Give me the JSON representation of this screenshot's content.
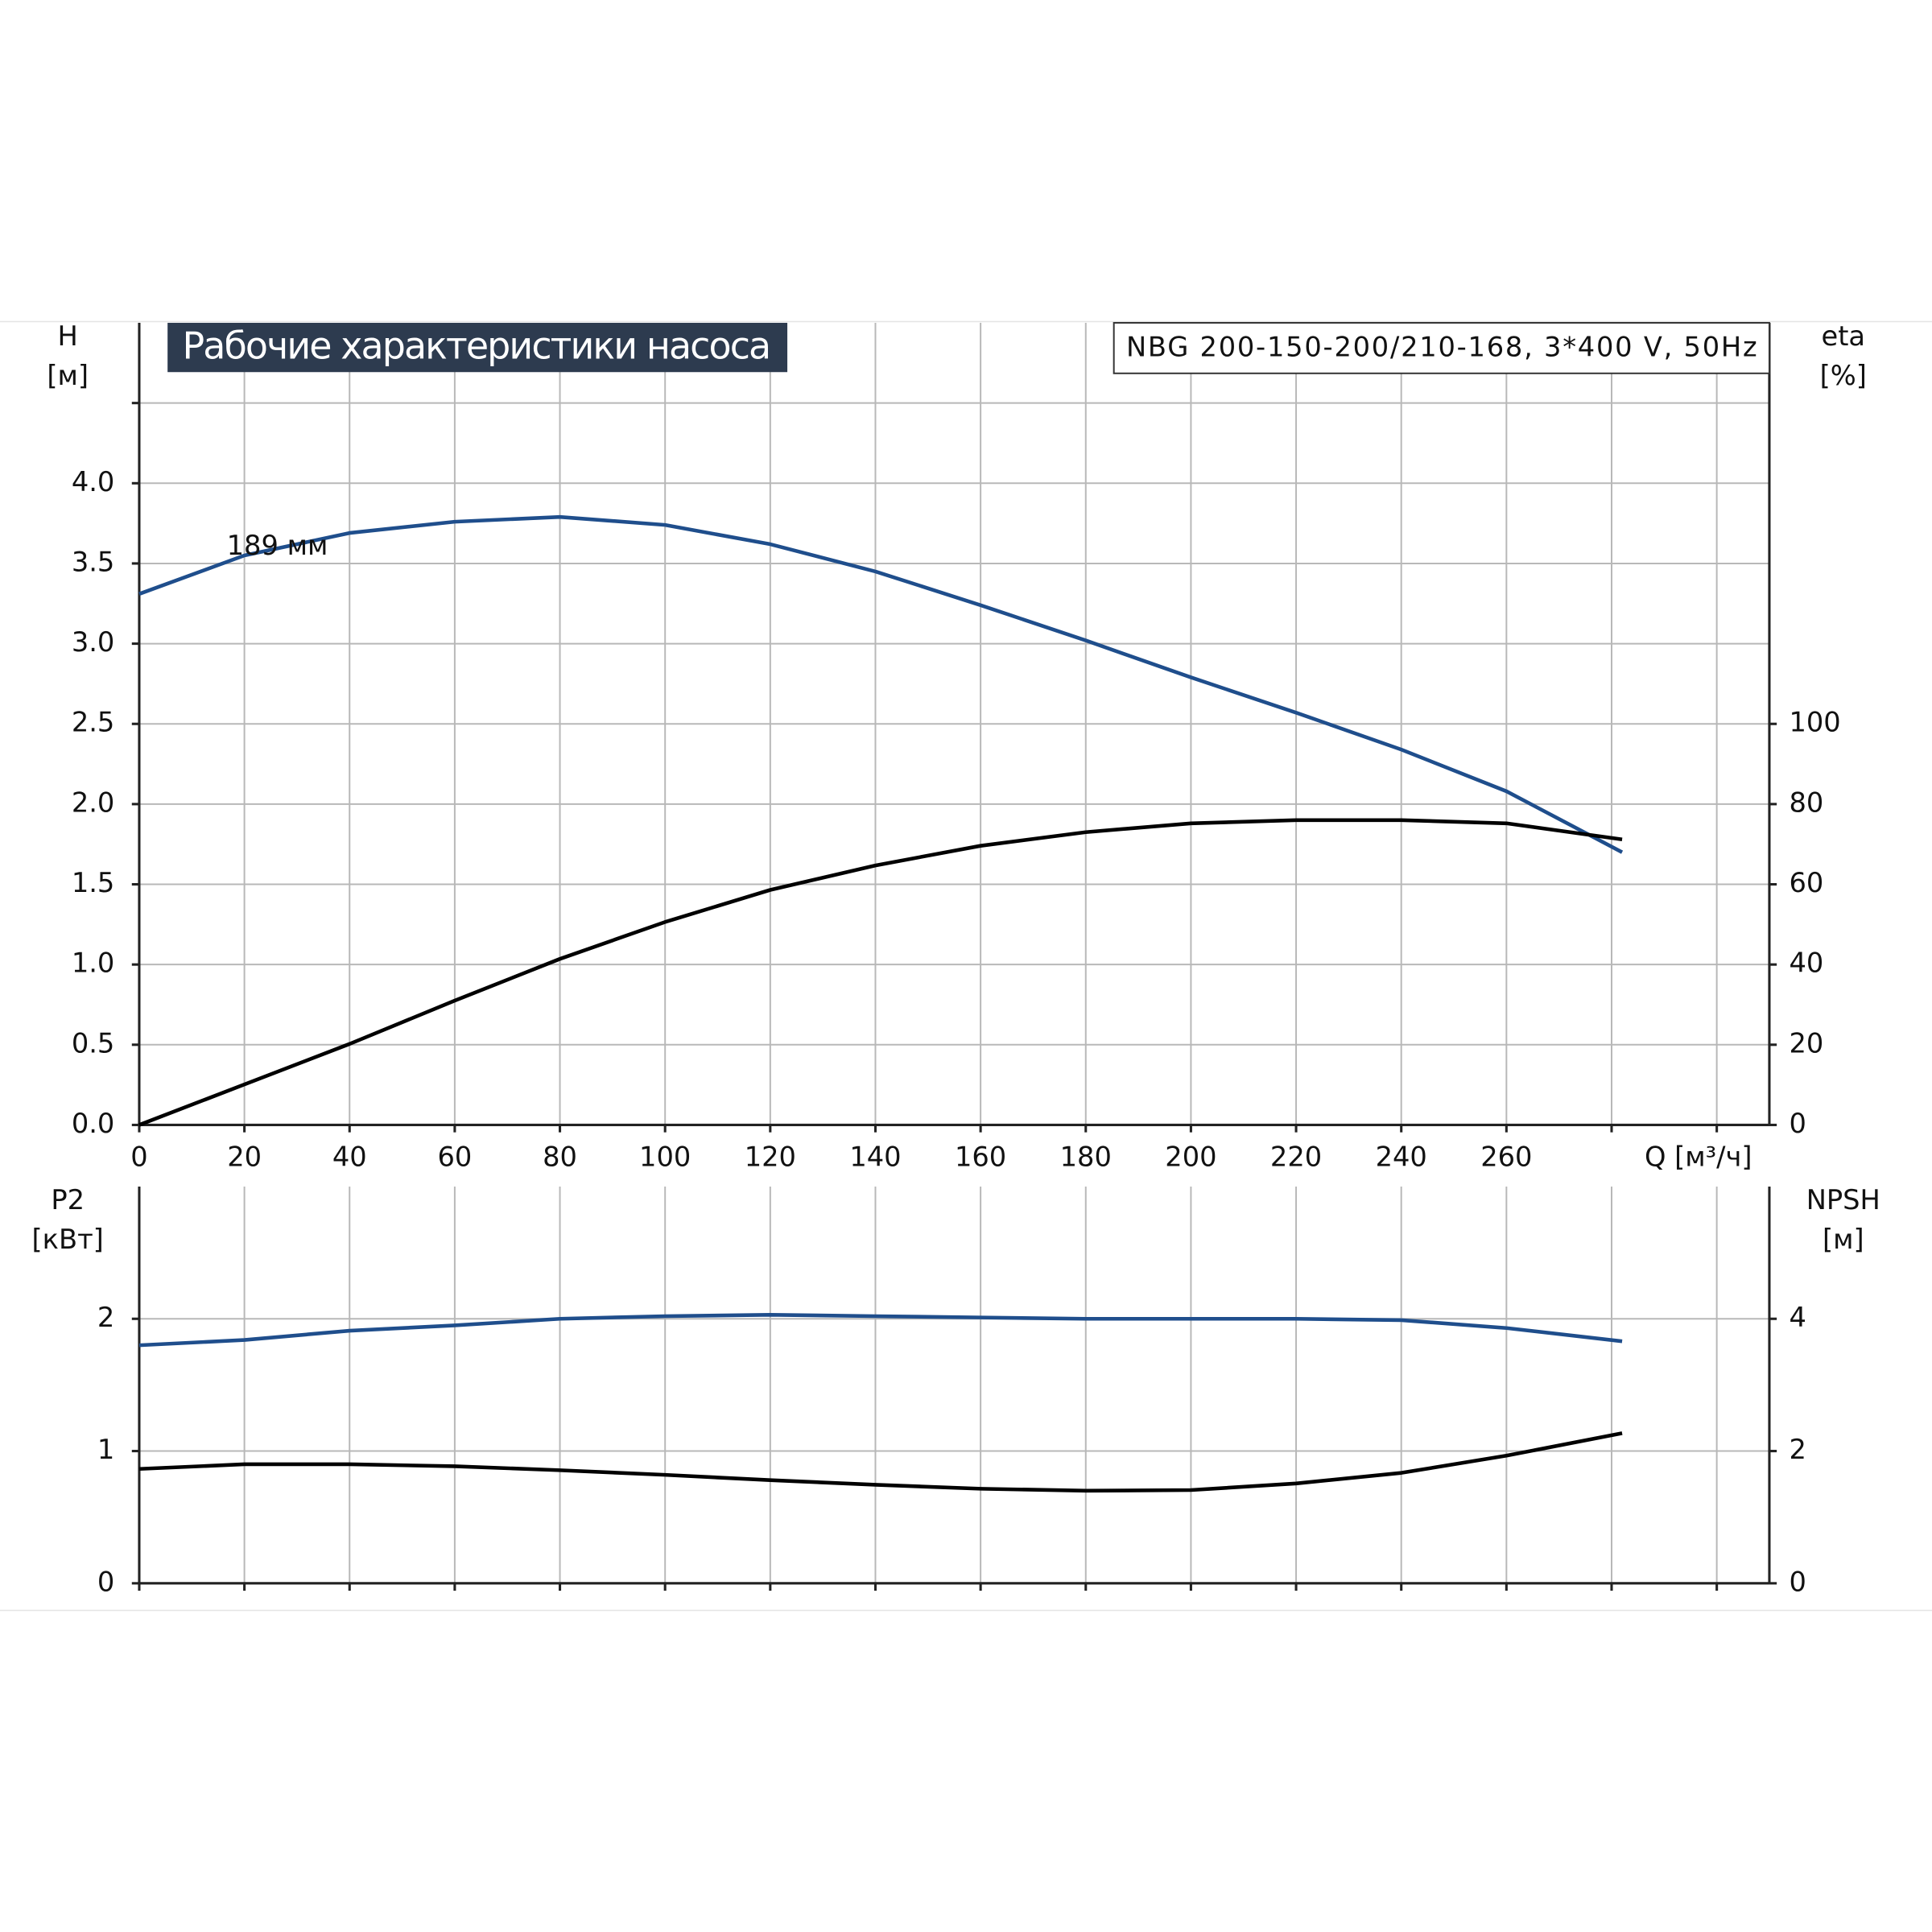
{
  "chart_data": [
    {
      "type": "line",
      "title": "Рабочие характеристики насоса",
      "subtitle": "NBG 200-150-200/210-168, 3*400 V, 50Hz",
      "y_label": "H",
      "y_unit": "[м]",
      "y2_label": "eta",
      "y2_unit": "[%]",
      "x_label": "Q [м³/ч]",
      "annotations": [
        "189 мм"
      ],
      "x": [
        0,
        20,
        40,
        60,
        80,
        100,
        120,
        140,
        160,
        180,
        200,
        220,
        240,
        260,
        282
      ],
      "series": [
        {
          "name": "H",
          "color": "#1f4e8c",
          "axis": "y",
          "values": [
            3.31,
            3.55,
            3.69,
            3.76,
            3.79,
            3.74,
            3.62,
            3.45,
            3.24,
            3.02,
            2.79,
            2.57,
            2.34,
            2.08,
            1.7
          ]
        },
        {
          "name": "eta",
          "color": "#000000",
          "axis": "y2",
          "values": [
            0,
            10.1,
            20.2,
            31,
            41.4,
            50.6,
            58.6,
            64.7,
            69.6,
            73,
            75.2,
            76,
            76,
            75.2,
            71.2
          ]
        }
      ],
      "xlim": [
        0,
        310
      ],
      "xticks": [
        0,
        20,
        40,
        60,
        80,
        100,
        120,
        140,
        160,
        180,
        200,
        220,
        240,
        260,
        {
          "value": 280,
          "label": null
        },
        {
          "value": 300,
          "label": null
        }
      ],
      "ylim": [
        0,
        5
      ],
      "yticks": [
        {
          "value": 0,
          "label": "0.0"
        },
        0.5,
        {
          "value": 1,
          "label": "1.0"
        },
        1.5,
        {
          "value": 2,
          "label": "2.0"
        },
        2.5,
        {
          "value": 3,
          "label": "3.0"
        },
        3.5,
        {
          "value": 4,
          "label": "4.0"
        },
        {
          "value": 4.5,
          "label": null
        }
      ],
      "y2lim": [
        0,
        200
      ],
      "y2ticks": [
        0,
        20,
        40,
        60,
        80,
        100
      ],
      "grid": true,
      "show_xtick_labels": true
    },
    {
      "type": "line",
      "y_label": "P2",
      "y_unit": "[кВт]",
      "y2_label": "NPSH",
      "y2_unit": "[м]",
      "x": [
        0,
        20,
        40,
        60,
        80,
        100,
        120,
        140,
        160,
        180,
        200,
        220,
        240,
        260,
        282
      ],
      "series": [
        {
          "name": "P2",
          "color": "#1f4e8c",
          "axis": "y",
          "values": [
            1.8,
            1.84,
            1.91,
            1.95,
            2.0,
            2.02,
            2.03,
            2.02,
            2.01,
            2.0,
            2.0,
            2.0,
            1.99,
            1.93,
            1.83
          ]
        },
        {
          "name": "NPSH",
          "color": "#000000",
          "axis": "y2",
          "values": [
            1.73,
            1.8,
            1.8,
            1.77,
            1.71,
            1.64,
            1.56,
            1.49,
            1.43,
            1.4,
            1.41,
            1.51,
            1.67,
            1.93,
            2.27
          ]
        }
      ],
      "xlim": [
        0,
        310
      ],
      "xticks": [
        0,
        20,
        40,
        60,
        80,
        100,
        120,
        140,
        160,
        180,
        200,
        220,
        240,
        260,
        280,
        300
      ],
      "ylim": [
        0,
        3
      ],
      "yticks": [
        0,
        1,
        2
      ],
      "y2lim": [
        0,
        6
      ],
      "y2ticks": [
        0,
        2,
        4
      ],
      "grid": true,
      "show_xtick_labels": false
    }
  ]
}
